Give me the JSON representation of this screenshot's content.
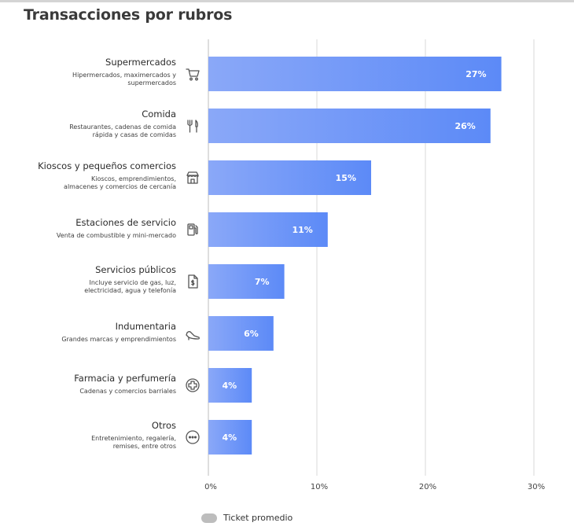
{
  "chart_data": {
    "type": "bar",
    "orientation": "horizontal",
    "title": "Transacciones por rubros",
    "categories": [
      {
        "name": "Supermercados",
        "description": [
          "Hipermercados, maximercados y",
          "supermercados"
        ],
        "icon": "cart-icon"
      },
      {
        "name": "Comida",
        "description": [
          "Restaurantes, cadenas de comida",
          "rápida y casas de comidas"
        ],
        "icon": "utensils-icon"
      },
      {
        "name": "Kioscos y pequeños comercios",
        "description": [
          "Kioscos, emprendimientos,",
          "almacenes y comercios de cercanía"
        ],
        "icon": "storefront-icon"
      },
      {
        "name": "Estaciones de servicio",
        "description": [
          "Venta de combustible y mini-mercado"
        ],
        "icon": "fuel-pump-icon"
      },
      {
        "name": "Servicios públicos",
        "description": [
          "Incluye servicio de gas, luz,",
          "electricidad, agua y telefonía"
        ],
        "icon": "invoice-icon"
      },
      {
        "name": "Indumentaria",
        "description": [
          "Grandes marcas y emprendimientos"
        ],
        "icon": "high-heel-icon"
      },
      {
        "name": "Farmacia y perfumería",
        "description": [
          "Cadenas y comercios barriales"
        ],
        "icon": "medical-cross-icon"
      },
      {
        "name": "Otros",
        "description": [
          "Entretenimiento, regalería,",
          "remises, entre otros"
        ],
        "icon": "more-dots-icon"
      }
    ],
    "values": [
      27,
      26,
      15,
      11,
      7,
      6,
      4,
      4
    ],
    "value_labels": [
      "27%",
      "26%",
      "15%",
      "11%",
      "7%",
      "6%",
      "4%",
      "4%"
    ],
    "xlim": [
      0,
      30
    ],
    "xticks": [
      0,
      10,
      20,
      30
    ],
    "xtick_labels": [
      "0%",
      "10%",
      "20%",
      "30%"
    ],
    "grid": true,
    "bar_color_start": "#8aa8f8",
    "bar_color_end": "#5c8af7",
    "legend": {
      "placement": "bottom-left",
      "label": "Ticket promedio",
      "color": "#bdbdbd"
    }
  }
}
